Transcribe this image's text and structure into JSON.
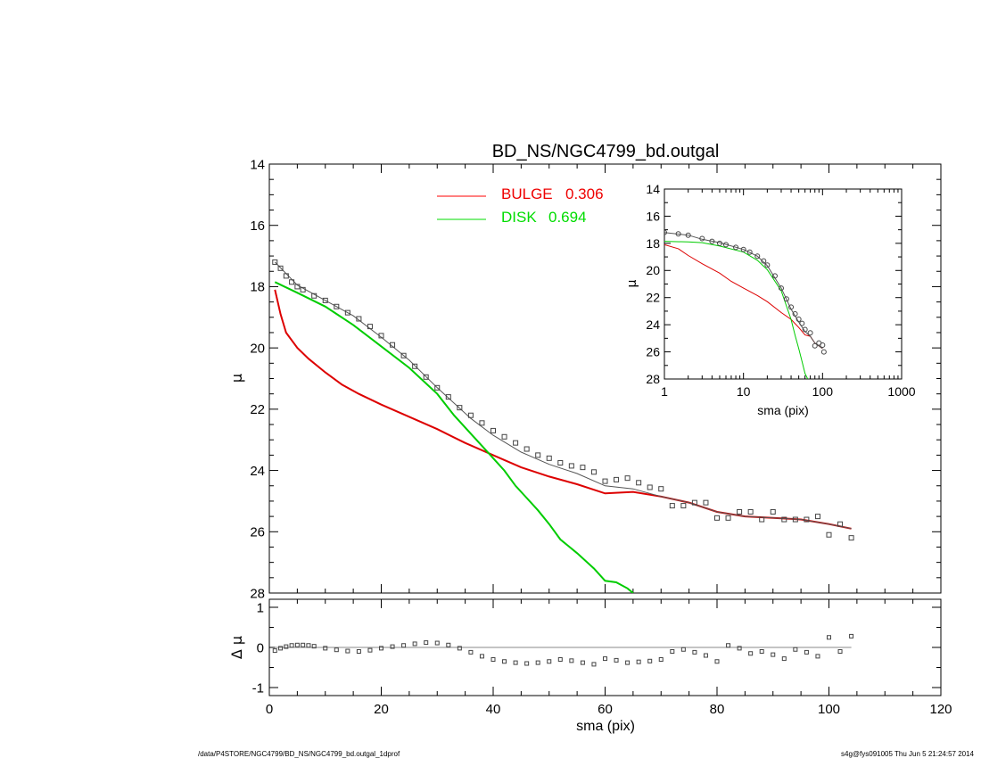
{
  "chart_data": [
    {
      "panel": "main",
      "type": "scatter",
      "title": "BD_NS/NGC4799_bd.outgal",
      "xlabel": "",
      "ylabel": "μ",
      "xlim": [
        0,
        120
      ],
      "ylim": [
        28,
        14
      ],
      "y_reversed": true,
      "x_ticks": [
        0,
        20,
        40,
        60,
        80,
        100,
        120
      ],
      "y_ticks": [
        14,
        16,
        18,
        20,
        22,
        24,
        26,
        28
      ],
      "legend": [
        {
          "label": "BULGE",
          "value": "0.306",
          "color": "#ff0000"
        },
        {
          "label": "DISK",
          "value": "0.694",
          "color": "#00dd00"
        }
      ],
      "series": [
        {
          "name": "BULGE",
          "kind": "line",
          "color": "#dd0000",
          "x": [
            1,
            2,
            3,
            5,
            7,
            10,
            13,
            16,
            20,
            25,
            30,
            35,
            40,
            45,
            50,
            55,
            60,
            65,
            70,
            75,
            80,
            85,
            90,
            95,
            100,
            104
          ],
          "y": [
            18.1,
            18.9,
            19.5,
            20.0,
            20.35,
            20.8,
            21.2,
            21.5,
            21.85,
            22.25,
            22.65,
            23.1,
            23.5,
            23.9,
            24.2,
            24.45,
            24.75,
            24.7,
            24.85,
            25.05,
            25.35,
            25.5,
            25.55,
            25.6,
            25.75,
            25.9
          ]
        },
        {
          "name": "DISK",
          "kind": "line",
          "color": "#00cc00",
          "x": [
            1,
            5,
            10,
            15,
            20,
            25,
            30,
            33,
            36,
            38,
            40,
            42,
            44,
            46,
            48,
            50,
            52,
            55,
            58,
            60,
            62,
            64,
            65
          ],
          "y": [
            17.85,
            18.2,
            18.65,
            19.25,
            19.95,
            20.65,
            21.5,
            22.2,
            22.8,
            23.2,
            23.6,
            24.0,
            24.5,
            24.9,
            25.3,
            25.75,
            26.25,
            26.7,
            27.2,
            27.6,
            27.65,
            27.85,
            28.0
          ]
        },
        {
          "name": "",
          "kind": "line",
          "color": "#555555",
          "x": [
            1,
            5,
            10,
            15,
            20,
            25,
            30,
            33,
            36,
            40,
            45,
            50,
            55,
            60,
            65,
            70,
            75,
            80,
            85,
            90,
            95,
            100,
            104
          ],
          "y": [
            17.2,
            17.95,
            18.45,
            18.95,
            19.65,
            20.4,
            21.3,
            21.8,
            22.3,
            22.85,
            23.4,
            23.8,
            24.1,
            24.5,
            24.6,
            24.85,
            25.05,
            25.35,
            25.5,
            25.55,
            25.6,
            25.75,
            25.9
          ]
        },
        {
          "name": "",
          "kind": "points",
          "color": "#444444",
          "x": [
            1,
            2,
            3,
            4,
            5,
            6,
            8,
            10,
            12,
            14,
            16,
            18,
            20,
            22,
            24,
            26,
            28,
            30,
            32,
            34,
            36,
            38,
            40,
            42,
            44,
            46,
            48,
            50,
            52,
            54,
            56,
            58,
            60,
            62,
            64,
            66,
            68,
            70,
            72,
            74,
            76,
            78,
            80,
            82,
            84,
            86,
            88,
            90,
            92,
            94,
            96,
            98,
            100,
            102,
            104
          ],
          "y": [
            17.2,
            17.4,
            17.65,
            17.85,
            18.0,
            18.1,
            18.3,
            18.45,
            18.65,
            18.85,
            19.05,
            19.3,
            19.6,
            19.9,
            20.25,
            20.6,
            20.95,
            21.3,
            21.6,
            21.95,
            22.2,
            22.45,
            22.7,
            22.9,
            23.1,
            23.3,
            23.5,
            23.6,
            23.75,
            23.85,
            23.9,
            24.05,
            24.35,
            24.3,
            24.25,
            24.4,
            24.55,
            24.6,
            25.15,
            25.15,
            25.05,
            25.05,
            25.55,
            25.55,
            25.35,
            25.35,
            25.6,
            25.35,
            25.6,
            25.6,
            25.6,
            25.5,
            26.1,
            25.75,
            26.2
          ]
        }
      ]
    },
    {
      "panel": "residual",
      "type": "scatter",
      "xlabel": "sma (pix)",
      "ylabel": "Δ μ",
      "xlim": [
        0,
        120
      ],
      "ylim": [
        -1.2,
        1.2
      ],
      "x_ticks": [
        0,
        20,
        40,
        60,
        80,
        100,
        120
      ],
      "y_ticks": [
        -1,
        0,
        1
      ],
      "series": [
        {
          "name": "",
          "kind": "points",
          "color": "#444444",
          "x": [
            1,
            2,
            3,
            4,
            5,
            6,
            7,
            8,
            10,
            12,
            14,
            16,
            18,
            20,
            22,
            24,
            26,
            28,
            30,
            32,
            34,
            36,
            38,
            40,
            42,
            44,
            46,
            48,
            50,
            52,
            54,
            56,
            58,
            60,
            62,
            64,
            66,
            68,
            70,
            72,
            74,
            76,
            78,
            80,
            82,
            84,
            86,
            88,
            90,
            92,
            94,
            96,
            98,
            100,
            102,
            104
          ],
          "y": [
            -0.08,
            -0.02,
            0.02,
            0.05,
            0.06,
            0.06,
            0.05,
            0.03,
            -0.02,
            -0.06,
            -0.09,
            -0.1,
            -0.07,
            -0.02,
            0.02,
            0.05,
            0.09,
            0.12,
            0.11,
            0.06,
            -0.02,
            -0.12,
            -0.22,
            -0.3,
            -0.35,
            -0.38,
            -0.4,
            -0.38,
            -0.35,
            -0.3,
            -0.33,
            -0.38,
            -0.42,
            -0.28,
            -0.32,
            -0.38,
            -0.36,
            -0.34,
            -0.3,
            -0.1,
            -0.05,
            -0.12,
            -0.2,
            -0.35,
            0.05,
            -0.02,
            -0.15,
            -0.1,
            -0.18,
            -0.28,
            -0.05,
            -0.12,
            -0.22,
            0.25,
            -0.1,
            0.28
          ]
        }
      ]
    },
    {
      "panel": "inset",
      "type": "scatter",
      "xlabel": "sma (pix)",
      "ylabel": "μ",
      "x_scale": "log",
      "xlim": [
        1,
        1000
      ],
      "ylim": [
        28,
        14
      ],
      "x_ticks": [
        1,
        10,
        100,
        1000
      ],
      "y_ticks": [
        14,
        16,
        18,
        20,
        22,
        24,
        26,
        28
      ],
      "series": [
        {
          "name": "BULGE",
          "kind": "line",
          "color": "#dd0000",
          "x": [
            1,
            1.5,
            2,
            3,
            5,
            7,
            10,
            15,
            20,
            30,
            40,
            50,
            60,
            70,
            80,
            100
          ],
          "y": [
            18.1,
            18.4,
            18.9,
            19.5,
            20.2,
            20.8,
            21.3,
            21.85,
            22.3,
            23.1,
            23.6,
            24.2,
            24.75,
            24.85,
            25.35,
            25.75
          ]
        },
        {
          "name": "DISK",
          "kind": "line",
          "color": "#00cc00",
          "x": [
            1,
            2,
            3,
            5,
            10,
            15,
            20,
            30,
            40,
            45,
            50,
            55,
            60,
            65
          ],
          "y": [
            17.85,
            17.9,
            17.95,
            18.2,
            18.65,
            19.25,
            19.95,
            21.5,
            23.6,
            24.8,
            25.75,
            26.7,
            27.6,
            28.0
          ]
        },
        {
          "name": "",
          "kind": "line",
          "color": "#555555",
          "x": [
            1,
            2,
            3,
            5,
            10,
            15,
            20,
            30,
            40,
            50,
            60,
            70,
            80,
            100
          ],
          "y": [
            17.2,
            17.4,
            17.7,
            17.95,
            18.45,
            18.95,
            19.65,
            21.3,
            22.85,
            23.8,
            24.5,
            24.85,
            25.35,
            25.75
          ]
        },
        {
          "name": "",
          "kind": "points",
          "color": "#444444",
          "x": [
            1,
            1.5,
            2,
            3,
            4,
            5,
            6,
            8,
            10,
            12,
            15,
            18,
            20,
            25,
            30,
            35,
            40,
            45,
            50,
            55,
            60,
            70,
            80,
            90,
            100,
            104
          ],
          "y": [
            17.2,
            17.3,
            17.4,
            17.65,
            17.85,
            18.0,
            18.1,
            18.3,
            18.45,
            18.65,
            18.95,
            19.3,
            19.6,
            20.4,
            21.3,
            22.1,
            22.7,
            23.2,
            23.6,
            23.9,
            24.35,
            24.6,
            25.55,
            25.35,
            25.5,
            26.0
          ]
        }
      ]
    }
  ],
  "footer": {
    "left": "/data/P4STORE/NGC4799/BD_NS/NGC4799_bd.outgal_1dprof",
    "right": "s4g@fys091005  Thu Jun  5 21:24:57 2014"
  }
}
